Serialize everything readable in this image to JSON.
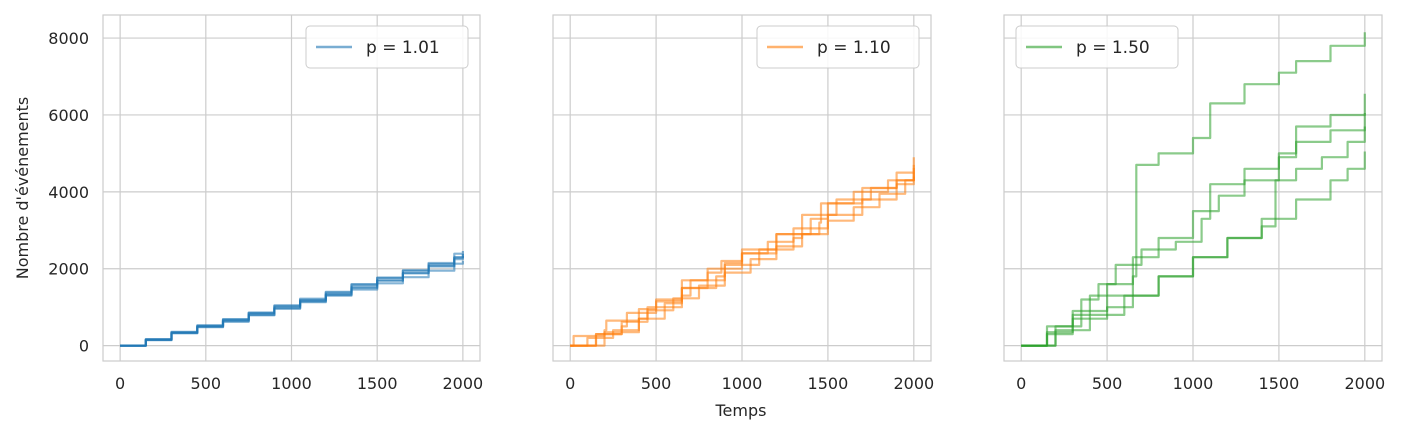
{
  "figure": {
    "ylabel": "Nombre d'événements",
    "xlabel": "Temps"
  },
  "chart_data": [
    {
      "type": "line",
      "legend_label": "p = 1.01",
      "legend_placement": "top-right",
      "color": "#1f77b4",
      "xlim": [
        -100,
        2100
      ],
      "ylim": [
        -400,
        8600
      ],
      "xticks": [
        0,
        500,
        1000,
        1500,
        2000
      ],
      "yticks": [
        0,
        2000,
        4000,
        6000,
        8000
      ],
      "grid": true,
      "series": [
        {
          "x": [
            0,
            150,
            300,
            450,
            600,
            750,
            900,
            1050,
            1200,
            1350,
            1500,
            1650,
            1800,
            1950,
            2000
          ],
          "y": [
            0,
            140,
            320,
            480,
            620,
            790,
            970,
            1150,
            1320,
            1500,
            1700,
            1890,
            2080,
            2290,
            2390
          ]
        },
        {
          "x": [
            0,
            150,
            300,
            450,
            600,
            750,
            900,
            1050,
            1200,
            1350,
            1500,
            1650,
            1800,
            1950,
            2000
          ],
          "y": [
            0,
            160,
            340,
            510,
            660,
            850,
            1030,
            1190,
            1380,
            1600,
            1770,
            1960,
            2150,
            2390,
            2460
          ]
        },
        {
          "x": [
            0,
            150,
            300,
            450,
            600,
            750,
            900,
            1050,
            1200,
            1350,
            1500,
            1650,
            1800,
            1950,
            2000
          ],
          "y": [
            0,
            150,
            330,
            490,
            640,
            800,
            960,
            1130,
            1300,
            1460,
            1620,
            1780,
            1950,
            2130,
            2210
          ]
        },
        {
          "x": [
            0,
            150,
            300,
            450,
            600,
            750,
            900,
            1050,
            1200,
            1350,
            1500,
            1650,
            1800,
            1950,
            2000
          ],
          "y": [
            0,
            170,
            360,
            530,
            690,
            860,
            1050,
            1220,
            1400,
            1580,
            1760,
            1950,
            2120,
            2300,
            2380
          ]
        },
        {
          "x": [
            0,
            150,
            300,
            450,
            600,
            750,
            900,
            1050,
            1200,
            1350,
            1500,
            1650,
            1800,
            1950,
            2000
          ],
          "y": [
            0,
            155,
            345,
            505,
            675,
            830,
            1000,
            1170,
            1340,
            1530,
            1690,
            1880,
            2060,
            2250,
            2330
          ]
        }
      ]
    },
    {
      "type": "line",
      "legend_label": "p = 1.10",
      "legend_placement": "top-right",
      "color": "#ff7f0e",
      "xlim": [
        -100,
        2100
      ],
      "ylim": [
        -400,
        8600
      ],
      "xticks": [
        0,
        500,
        1000,
        1500,
        2000
      ],
      "yticks": [
        0,
        2000,
        4000,
        6000,
        8000
      ],
      "grid": true,
      "series": [
        {
          "x": [
            0,
            20,
            200,
            210,
            400,
            500,
            650,
            800,
            880,
            1000,
            1200,
            1400,
            1500,
            1700,
            1900,
            2000
          ],
          "y": [
            0,
            250,
            400,
            650,
            950,
            1150,
            1500,
            1900,
            2200,
            2500,
            2900,
            3300,
            3700,
            4100,
            4500,
            4900
          ]
        },
        {
          "x": [
            0,
            100,
            250,
            400,
            550,
            650,
            850,
            900,
            1000,
            1150,
            1300,
            1500,
            1700,
            1900,
            2000
          ],
          "y": [
            0,
            200,
            400,
            700,
            1100,
            1500,
            1800,
            2150,
            2400,
            2700,
            3050,
            3400,
            3800,
            4200,
            4400
          ]
        },
        {
          "x": [
            0,
            150,
            300,
            330,
            500,
            650,
            800,
            1000,
            1200,
            1450,
            1460,
            1650,
            1850,
            2000
          ],
          "y": [
            0,
            300,
            500,
            850,
            1200,
            1700,
            2000,
            2400,
            2900,
            3200,
            3700,
            4000,
            4300,
            4500
          ]
        },
        {
          "x": [
            0,
            150,
            300,
            450,
            600,
            750,
            900,
            1050,
            1200,
            1350,
            1500,
            1650,
            1800,
            1950,
            2000
          ],
          "y": [
            0,
            300,
            620,
            920,
            1230,
            1560,
            1900,
            2250,
            2580,
            2900,
            3250,
            3600,
            3950,
            4300,
            4620
          ]
        },
        {
          "x": [
            0,
            200,
            400,
            450,
            650,
            700,
            900,
            1100,
            1300,
            1350,
            1550,
            1750,
            1900,
            2000
          ],
          "y": [
            0,
            350,
            700,
            1000,
            1300,
            1700,
            2100,
            2500,
            2800,
            3400,
            3800,
            4100,
            4300,
            4700
          ]
        }
      ]
    },
    {
      "type": "line",
      "legend_label": "p = 1.50",
      "legend_placement": "top-left",
      "color": "#2ca02c",
      "xlim": [
        -100,
        2100
      ],
      "ylim": [
        -400,
        8600
      ],
      "xticks": [
        0,
        500,
        1000,
        1500,
        2000
      ],
      "yticks": [
        0,
        2000,
        4000,
        6000,
        8000
      ],
      "grid": true,
      "series": [
        {
          "x": [
            0,
            150,
            300,
            500,
            650,
            670,
            800,
            1000,
            1100,
            1300,
            1500,
            1600,
            1800,
            2000
          ],
          "y": [
            0,
            500,
            900,
            1300,
            1800,
            4700,
            5000,
            5400,
            6300,
            6800,
            7100,
            7400,
            7800,
            8150
          ]
        },
        {
          "x": [
            0,
            150,
            300,
            400,
            500,
            650,
            800,
            900,
            1050,
            1100,
            1300,
            1500,
            1600,
            1800,
            2000
          ],
          "y": [
            0,
            350,
            800,
            1300,
            1600,
            2300,
            2500,
            2700,
            3300,
            4200,
            4600,
            5000,
            5700,
            6000,
            6550
          ]
        },
        {
          "x": [
            0,
            200,
            350,
            450,
            550,
            700,
            800,
            1000,
            1150,
            1300,
            1500,
            1600,
            1800,
            2000
          ],
          "y": [
            0,
            500,
            1200,
            1600,
            2100,
            2500,
            2800,
            3500,
            3900,
            4300,
            4900,
            5300,
            5600,
            6050
          ]
        },
        {
          "x": [
            0,
            150,
            300,
            500,
            650,
            800,
            1000,
            1200,
            1400,
            1480,
            1600,
            1750,
            1900,
            2000
          ],
          "y": [
            0,
            300,
            700,
            1000,
            1300,
            1800,
            2300,
            2800,
            3100,
            4300,
            4600,
            4900,
            5300,
            5700
          ]
        },
        {
          "x": [
            0,
            200,
            400,
            600,
            800,
            1000,
            1200,
            1400,
            1600,
            1800,
            1900,
            2000
          ],
          "y": [
            0,
            400,
            800,
            1300,
            1800,
            2300,
            2800,
            3300,
            3800,
            4300,
            4600,
            5050
          ]
        }
      ]
    }
  ]
}
